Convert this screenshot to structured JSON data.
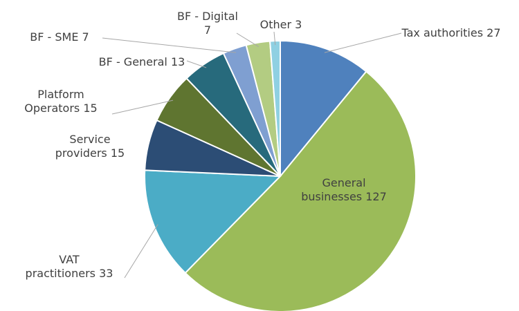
{
  "chart_data": {
    "type": "pie",
    "categories": [
      "Tax authorities",
      "General businesses",
      "VAT practitioners",
      "Service providers",
      "Platform Operators",
      "BF - General",
      "BF - SME",
      "BF - Digital",
      "Other"
    ],
    "values": [
      27,
      127,
      33,
      15,
      15,
      13,
      7,
      7,
      3
    ],
    "colors": [
      "#4f81bd",
      "#9bbb59",
      "#4bacc6",
      "#2c4d75",
      "#5f7530",
      "#276a7c",
      "#7f9fd1",
      "#b3cc82",
      "#8fd0e2"
    ]
  }
}
